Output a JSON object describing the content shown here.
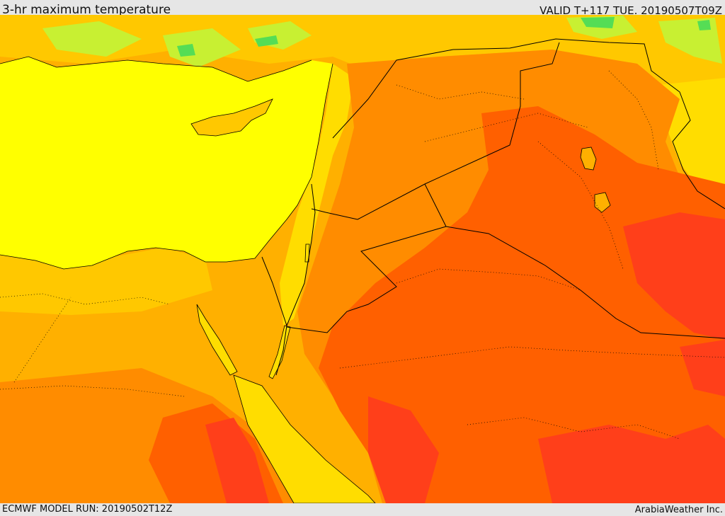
{
  "header": {
    "title": "3-hr maximum temperature",
    "valid": "VALID T+117 TUE. 20190507T09Z"
  },
  "footer": {
    "model_run": "ECMWF MODEL RUN: 20190502T12Z",
    "credit": "ArabiaWeather Inc."
  },
  "map": {
    "variable": "3-hr maximum temperature",
    "colors": {
      "sea": "#ffff00",
      "cool": "#ffdd00",
      "warm": "#ffb000",
      "hot": "#ff8c00",
      "very_hot": "#ff6000",
      "extreme": "#ff3f1a",
      "cool_highland": "#c8f032",
      "cold_highland": "#55dd55"
    },
    "features": [
      "mediterranean-sea",
      "cyprus",
      "red-sea",
      "gulf-of-suez",
      "gulf-of-aqaba",
      "dead-sea",
      "lake-tharthar",
      "lake-habbaniyah"
    ]
  }
}
